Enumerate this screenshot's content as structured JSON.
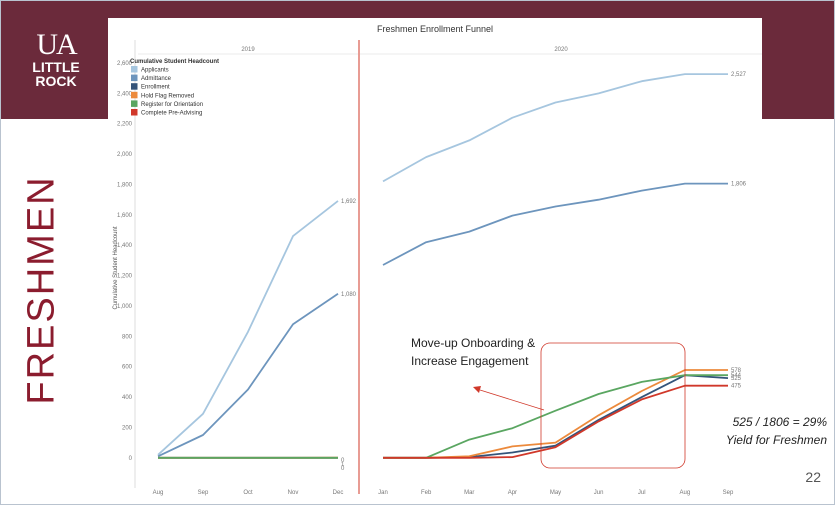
{
  "slide": {
    "page_number": "22"
  },
  "logo": {
    "ua": "UA",
    "line1": "LITTLE",
    "line2": "ROCK"
  },
  "sidebar": {
    "label": "FRESHMEN"
  },
  "colors": {
    "banner": "#6b2a3b",
    "sidebar_text": "#8b1c2e",
    "applicants": "#a6c6df",
    "admittance": "#6d95bd",
    "enrollment": "#34547a",
    "hold_flag_removed": "#ec8a3c",
    "register_orientation": "#5aa661",
    "complete_pre_advising": "#d0382a",
    "divider": "#d0382a"
  },
  "annotations": {
    "move_up_line1": "Move-up Onboarding &",
    "move_up_line2": "Increase Engagement",
    "yield_line1": "525 / 1806 = 29%",
    "yield_line2": "Yield for Freshmen"
  },
  "chart_data": {
    "type": "line",
    "title": "Freshmen Enrollment Funnel",
    "ylabel": "Cumulative Student Headcount",
    "legend_title": "Cumulative Student Headcount",
    "legend_position": "top-left",
    "ylim": [
      -100,
      2600
    ],
    "yticks": [
      0,
      200,
      400,
      600,
      800,
      1000,
      1200,
      1400,
      1600,
      1800,
      2000,
      2200,
      2400,
      2600
    ],
    "ytick_labels": [
      "0",
      "200",
      "400",
      "600",
      "800",
      "1,000",
      "1,200",
      "1,400",
      "1,600",
      "1,800",
      "2,000",
      "2,200",
      "2,400",
      "2,600"
    ],
    "grid": false,
    "panels": [
      {
        "label": "2019",
        "categories": [
          "Aug",
          "Sep",
          "Oct",
          "Nov",
          "Dec"
        ],
        "series": [
          {
            "name": "Applicants",
            "color_key": "applicants",
            "values": [
              20,
              290,
              830,
              1460,
              1692
            ],
            "end_label": "1,692"
          },
          {
            "name": "Admittance",
            "color_key": "admittance",
            "values": [
              10,
              150,
              450,
              880,
              1080
            ],
            "end_label": "1,080"
          },
          {
            "name": "Enrollment",
            "color_key": "enrollment",
            "values": [
              0,
              0,
              0,
              0,
              0
            ],
            "end_label": "0"
          },
          {
            "name": "Hold Flag Removed",
            "color_key": "hold_flag_removed",
            "values": [
              0,
              0,
              0,
              0,
              1
            ],
            "end_label": "1"
          },
          {
            "name": "Register for Orientation",
            "color_key": "register_orientation",
            "values": [
              0,
              0,
              0,
              0,
              0
            ],
            "end_label": "0"
          }
        ]
      },
      {
        "label": "2020",
        "categories": [
          "Jan",
          "Feb",
          "Mar",
          "Apr",
          "May",
          "Jun",
          "Jul",
          "Aug",
          "Sep"
        ],
        "series": [
          {
            "name": "Applicants",
            "color_key": "applicants",
            "values": [
              1820,
              1980,
              2090,
              2240,
              2340,
              2400,
              2480,
              2527,
              2527
            ],
            "end_label": "2,527"
          },
          {
            "name": "Admittance",
            "color_key": "admittance",
            "values": [
              1270,
              1420,
              1490,
              1595,
              1655,
              1700,
              1760,
              1806,
              1806
            ],
            "end_label": "1,806"
          },
          {
            "name": "Enrollment",
            "color_key": "enrollment",
            "values": [
              0,
              0,
              5,
              35,
              80,
              250,
              400,
              544,
              525
            ],
            "end_label": "525"
          },
          {
            "name": "Hold Flag Removed",
            "color_key": "hold_flag_removed",
            "values": [
              0,
              0,
              10,
              75,
              100,
              280,
              440,
              578,
              578
            ],
            "end_label": "578"
          },
          {
            "name": "Register for Orientation",
            "color_key": "register_orientation",
            "values": [
              0,
              0,
              120,
              195,
              310,
              420,
              500,
              544,
              544
            ],
            "end_label": "544"
          },
          {
            "name": "Complete Pre-Advising",
            "color_key": "complete_pre_advising",
            "values": [
              0,
              0,
              0,
              5,
              70,
              240,
              385,
              475,
              475
            ],
            "end_label": "475"
          }
        ]
      }
    ],
    "legend": [
      "Applicants",
      "Admittance",
      "Enrollment",
      "Hold Flag Removed",
      "Register for Orientation",
      "Complete Pre-Advising"
    ]
  }
}
